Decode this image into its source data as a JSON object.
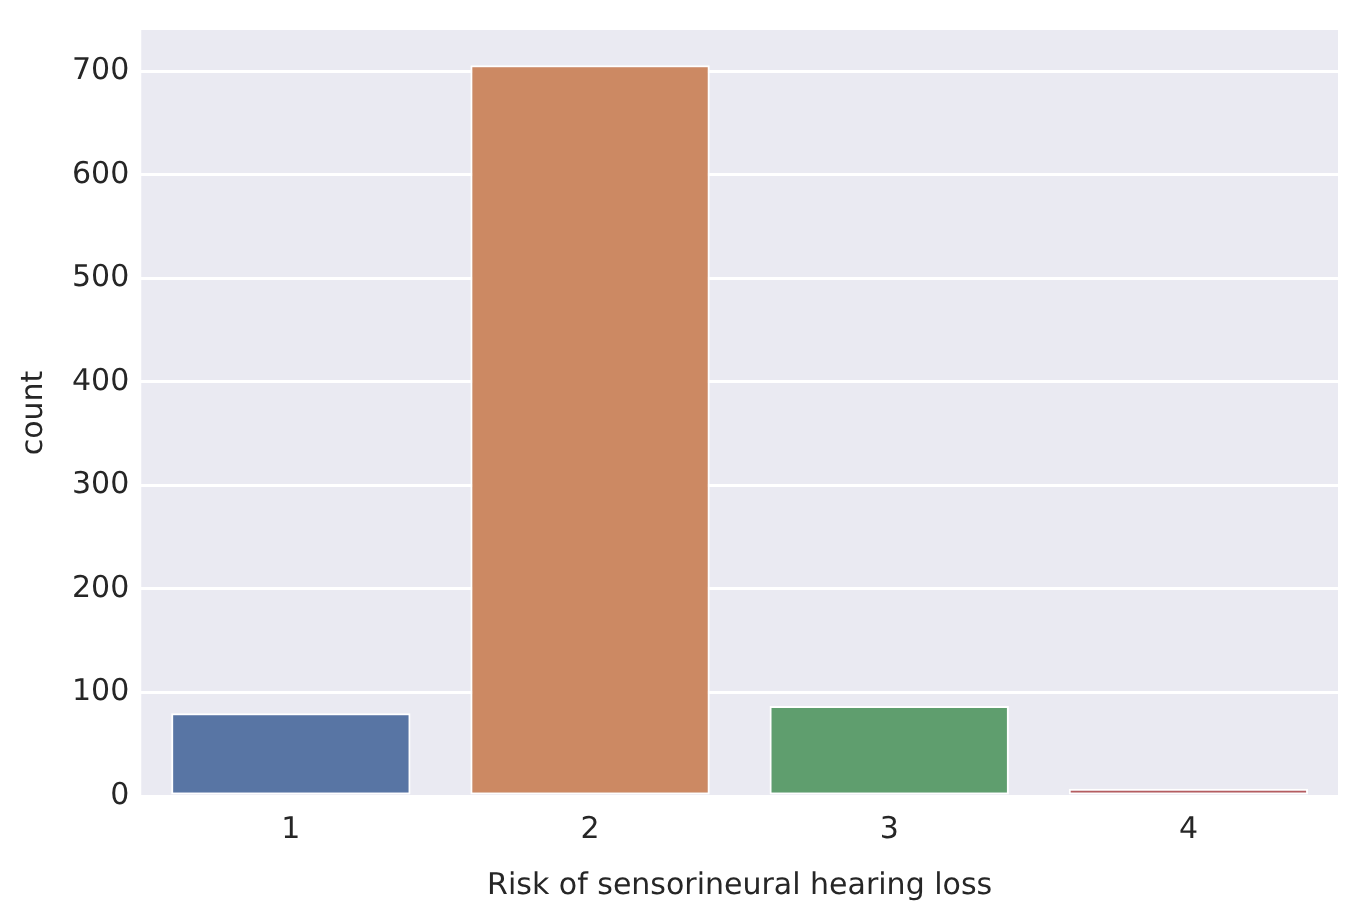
{
  "chart_data": {
    "type": "bar",
    "xlabel": "Risk of sensorineural hearing loss",
    "ylabel": "count",
    "categories": [
      "1",
      "2",
      "3",
      "4"
    ],
    "values": [
      80,
      706,
      87,
      7
    ],
    "colors": [
      "#5875a4",
      "#cc8963",
      "#5f9e6e",
      "#b55d60"
    ],
    "ylim": [
      0,
      740
    ],
    "yticks": [
      0,
      100,
      200,
      300,
      400,
      500,
      600,
      700
    ],
    "grid": "y",
    "legend": false
  }
}
